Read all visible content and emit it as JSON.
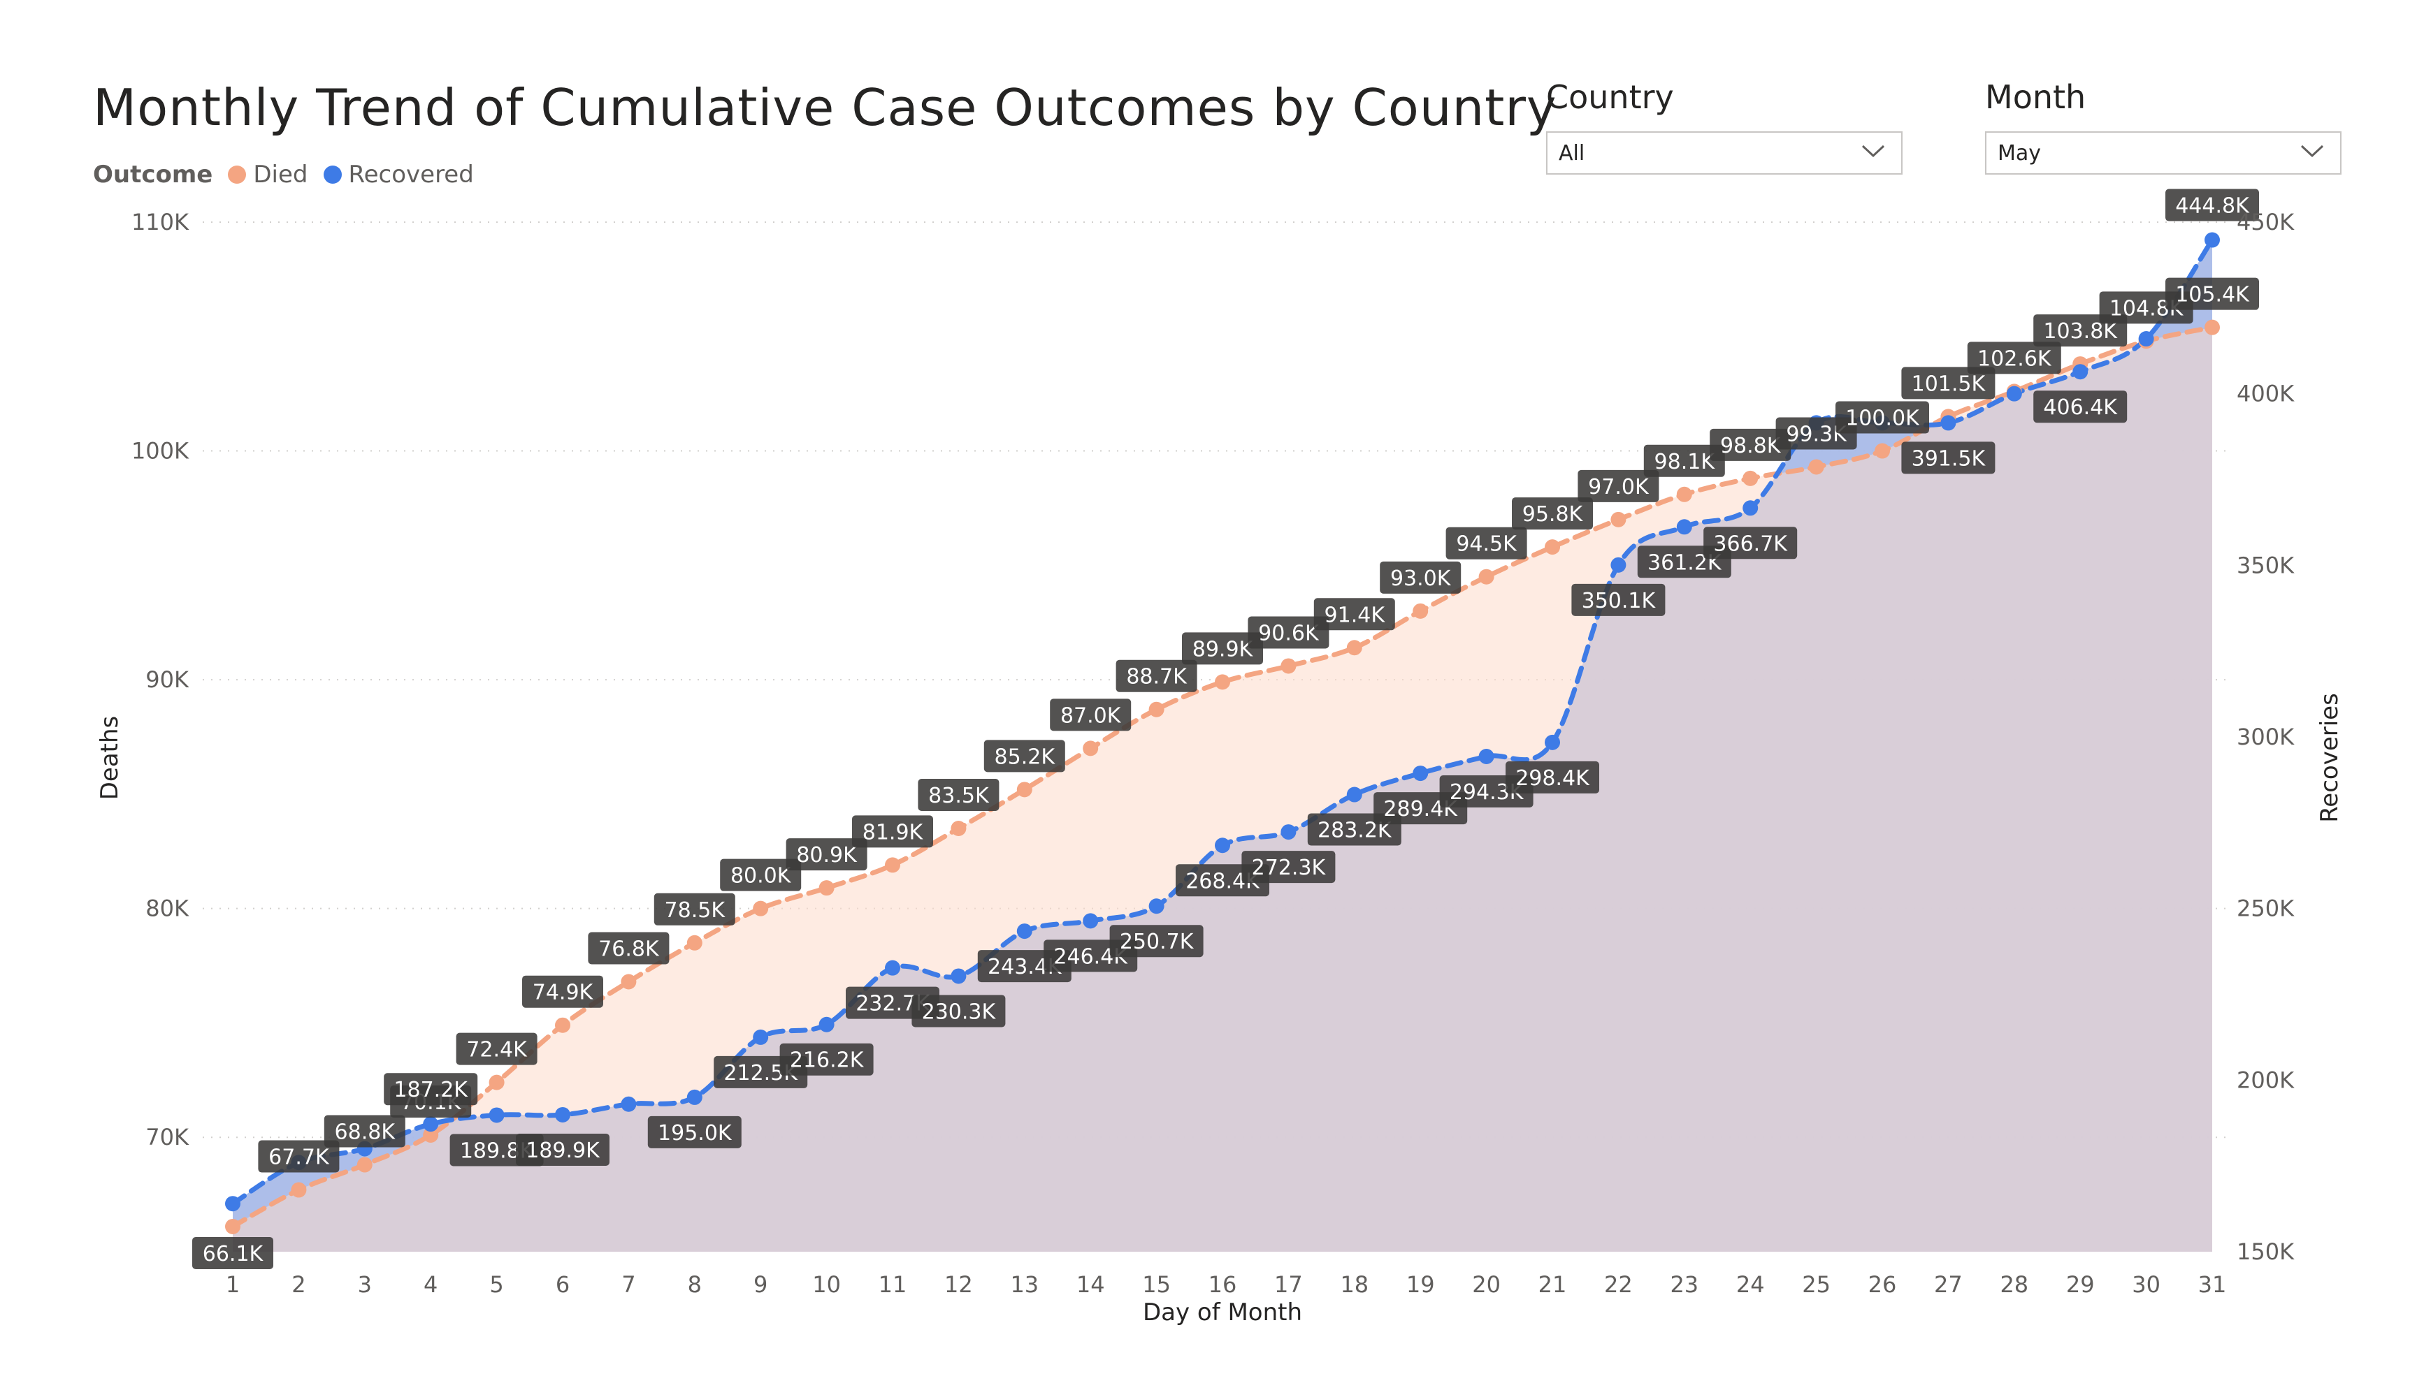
{
  "title": "Monthly Trend of Cumulative Case Outcomes by Country",
  "legend": {
    "title": "Outcome",
    "items": [
      {
        "label": "Died",
        "color": "#F4A582"
      },
      {
        "label": "Recovered",
        "color": "#3E7BE6"
      }
    ]
  },
  "slicers": {
    "country": {
      "label": "Country",
      "value": "All"
    },
    "month": {
      "label": "Month",
      "value": "May"
    }
  },
  "chart_data": {
    "type": "line",
    "title": "Monthly Trend of Cumulative Case Outcomes by Country",
    "xlabel": "Day of Month",
    "ylabel": "Deaths",
    "y2label": "Recoveries",
    "x": [
      1,
      2,
      3,
      4,
      5,
      6,
      7,
      8,
      9,
      10,
      11,
      12,
      13,
      14,
      15,
      16,
      17,
      18,
      19,
      20,
      21,
      22,
      23,
      24,
      25,
      26,
      27,
      28,
      29,
      30,
      31
    ],
    "ylim": [
      65000,
      110000
    ],
    "y2lim": [
      150000,
      450000
    ],
    "yticks": [
      "70K",
      "80K",
      "90K",
      "100K",
      "110K"
    ],
    "yticks_values": [
      70000,
      80000,
      90000,
      100000,
      110000
    ],
    "y2ticks": [
      "150K",
      "200K",
      "250K",
      "300K",
      "350K",
      "400K",
      "450K"
    ],
    "y2ticks_values": [
      150000,
      200000,
      250000,
      300000,
      350000,
      400000,
      450000
    ],
    "series": [
      {
        "name": "Died",
        "axis": "left",
        "color": "#F4A582",
        "fill": "#FDDACB",
        "values": [
          66100,
          67700,
          68800,
          70100,
          72400,
          74900,
          76800,
          78500,
          80000,
          80900,
          81900,
          83500,
          85200,
          87000,
          88700,
          89900,
          90600,
          91400,
          93000,
          94500,
          95800,
          97000,
          98100,
          98800,
          99300,
          100000,
          101500,
          102600,
          103800,
          104800,
          105400
        ],
        "labels": [
          "66.1K",
          "67.7K",
          "68.8K",
          "70.1K",
          "72.4K",
          "74.9K",
          "76.8K",
          "78.5K",
          "80.0K",
          "80.9K",
          "81.9K",
          "83.5K",
          "85.2K",
          "87.0K",
          "88.7K",
          "89.9K",
          "90.6K",
          "91.4K",
          "93.0K",
          "94.5K",
          "95.8K",
          "97.0K",
          "98.1K",
          "98.8K",
          "99.3K",
          "100.0K",
          "101.5K",
          "102.6K",
          "103.8K",
          "104.8K",
          "105.4K"
        ]
      },
      {
        "name": "Recovered",
        "axis": "right",
        "color": "#3E7BE6",
        "fill": "#A9BAE8",
        "values": [
          164000,
          176000,
          180000,
          187200,
          189800,
          189900,
          193000,
          195000,
          212500,
          216200,
          232700,
          230300,
          243400,
          246400,
          250700,
          268400,
          272300,
          283200,
          289400,
          294300,
          298400,
          350100,
          361200,
          366700,
          391500,
          391500,
          391500,
          400000,
          406400,
          416000,
          444800
        ],
        "labels": [
          "",
          "",
          "",
          "187.2K",
          "189.8K",
          "189.9K",
          "",
          "195.0K",
          "212.5K",
          "216.2K",
          "232.7K",
          "230.3K",
          "243.4K",
          "246.4K",
          "250.7K",
          "268.4K",
          "272.3K",
          "283.2K",
          "289.4K",
          "294.3K",
          "298.4K",
          "350.1K",
          "361.2K",
          "366.7K",
          "",
          "",
          "391.5K",
          "",
          "406.4K",
          "",
          "444.8K"
        ]
      }
    ]
  }
}
